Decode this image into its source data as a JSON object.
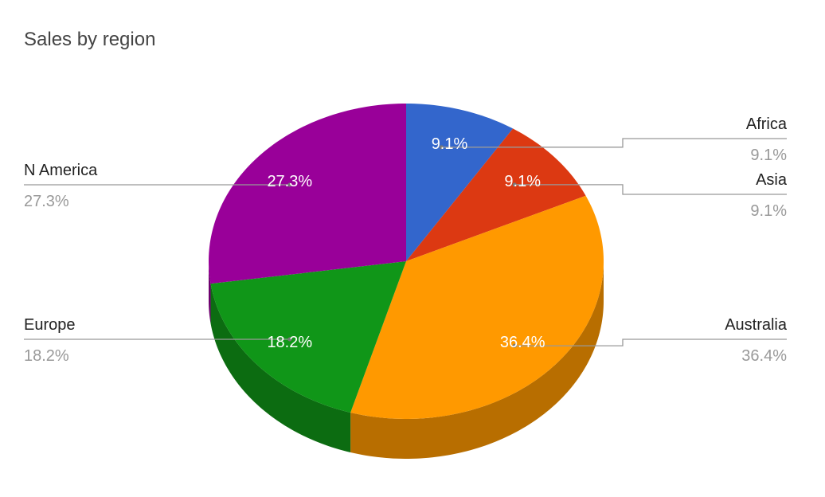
{
  "chart_data": {
    "type": "pie",
    "title": "Sales by region",
    "categories": [
      "Africa",
      "Asia",
      "Australia",
      "Europe",
      "N America"
    ],
    "values": [
      9.1,
      9.1,
      36.4,
      18.2,
      27.3
    ],
    "value_labels": [
      "9.1%",
      "9.1%",
      "36.4%",
      "18.2%",
      "27.3%"
    ],
    "colors": [
      "#3366cc",
      "#dc3912",
      "#ff9900",
      "#109618",
      "#990099"
    ],
    "three_d": true
  }
}
